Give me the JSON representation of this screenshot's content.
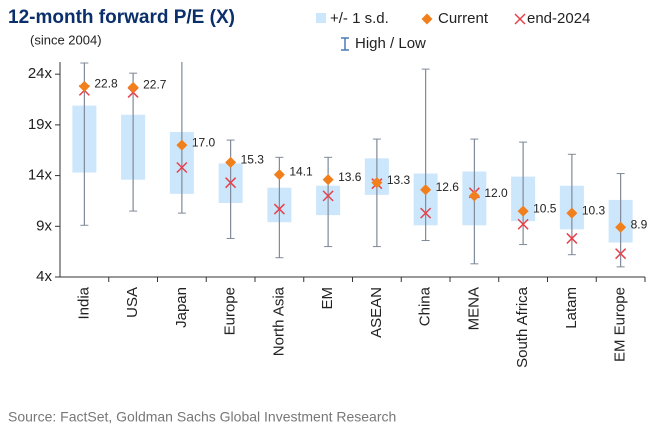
{
  "chart_data": {
    "type": "range",
    "title": "12-month forward P/E (X)",
    "subtitle": "(since 2004)",
    "source": "Source: FactSet, Goldman Sachs Global Investment Research",
    "categories": [
      "India",
      "USA",
      "Japan",
      "Europe",
      "North Asia",
      "EM",
      "ASEAN",
      "China",
      "MENA",
      "South Africa",
      "Latam",
      "EM Europe"
    ],
    "sd_band": {
      "name": "+/- 1 s.d.",
      "color": "#cce6fb",
      "high": [
        20.9,
        20.0,
        18.3,
        15.2,
        12.8,
        13.0,
        15.7,
        14.2,
        14.4,
        13.9,
        13.0,
        11.6
      ],
      "low": [
        14.3,
        13.6,
        12.2,
        11.3,
        9.4,
        10.1,
        12.1,
        9.1,
        9.1,
        9.5,
        8.7,
        7.4
      ]
    },
    "range": {
      "name": "High / Low",
      "color": "#808a99",
      "high": [
        25.1,
        24.1,
        25.5,
        17.5,
        15.8,
        15.8,
        17.6,
        24.5,
        17.6,
        17.3,
        16.1,
        14.2
      ],
      "low": [
        9.1,
        10.5,
        10.3,
        7.8,
        5.9,
        7.0,
        7.0,
        7.6,
        5.3,
        7.2,
        6.2,
        5.0
      ]
    },
    "current": {
      "name": "Current",
      "color": "#f07f1c",
      "values": [
        22.8,
        22.7,
        17.0,
        15.3,
        14.1,
        13.6,
        13.3,
        12.6,
        12.0,
        10.5,
        10.3,
        8.9
      ],
      "value_labels": [
        "22.8",
        "22.7",
        "17.0",
        "15.3",
        "14.1",
        "13.6",
        "13.3",
        "12.6",
        "12.0",
        "10.5",
        "10.3",
        "8.9"
      ]
    },
    "end_2024": {
      "name": "end-2024",
      "color": "#e8404a",
      "values": [
        22.4,
        22.2,
        14.8,
        13.3,
        10.7,
        12.0,
        13.2,
        10.3,
        12.3,
        9.2,
        7.8,
        6.3
      ]
    },
    "ylim": [
      4,
      25.2
    ],
    "yticks": [
      {
        "value": 4,
        "label": "4x"
      },
      {
        "value": 9,
        "label": "9x"
      },
      {
        "value": 14,
        "label": "14x"
      },
      {
        "value": 19,
        "label": "19x"
      },
      {
        "value": 24,
        "label": "24x"
      }
    ]
  }
}
